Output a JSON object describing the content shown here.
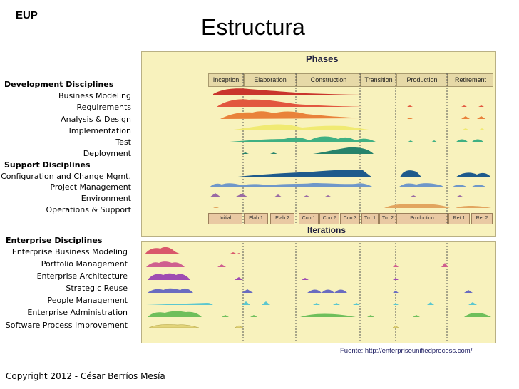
{
  "eup": "EUP",
  "title": "Estructura",
  "development": {
    "heading": "Development Disciplines",
    "items": [
      "Business Modeling",
      "Requirements",
      "Analysis & Design",
      "Implementation",
      "Test",
      "Deployment"
    ]
  },
  "support": {
    "heading": "Support Disciplines",
    "items": [
      "Configuration and Change Mgmt.",
      "Project Management",
      "Environment",
      "Operations & Support"
    ]
  },
  "enterprise": {
    "heading": "Enterprise Disciplines",
    "items": [
      "Enterprise Business Modeling",
      "Portfolio Management",
      "Enterprise Architecture",
      "Strategic Reuse",
      "People Management",
      "Enterprise Administration",
      "Software Process Improvement"
    ]
  },
  "diagram": {
    "phases_label": "Phases",
    "phases": [
      "Inception",
      "Elaboration",
      "Construction",
      "Transition",
      "Production",
      "Retirement"
    ],
    "iterations_label": "Iterations",
    "iterations": [
      "Initial",
      "Elab 1",
      "Elab 2",
      "Con 1",
      "Con 2",
      "Con 3",
      "Trn 1",
      "Trn 2",
      "Production",
      "Ret 1",
      "Ret 2"
    ],
    "colors": {
      "business_modeling": "#c9352c",
      "requirements": "#e2573f",
      "analysis_design": "#e9823a",
      "implementation": "#f0ea72",
      "test": "#3fb083",
      "deployment": "#27836b",
      "config_change": "#1e5a8c",
      "project_management": "#6f97c9",
      "environment": "#9a6aa4",
      "operations_support": "#e2a55f",
      "ebm": "#d9576b",
      "portfolio": "#cf5f8f",
      "ea": "#9e4cb2",
      "reuse": "#6a6cc0",
      "people": "#5bc7cf",
      "admin": "#6fbf5b",
      "spi": "#e2d47a"
    }
  },
  "source": "Fuente: http://enterpriseunifiedprocess.com/",
  "copyright": "Copyright 2012 - César Berríos Mesía"
}
